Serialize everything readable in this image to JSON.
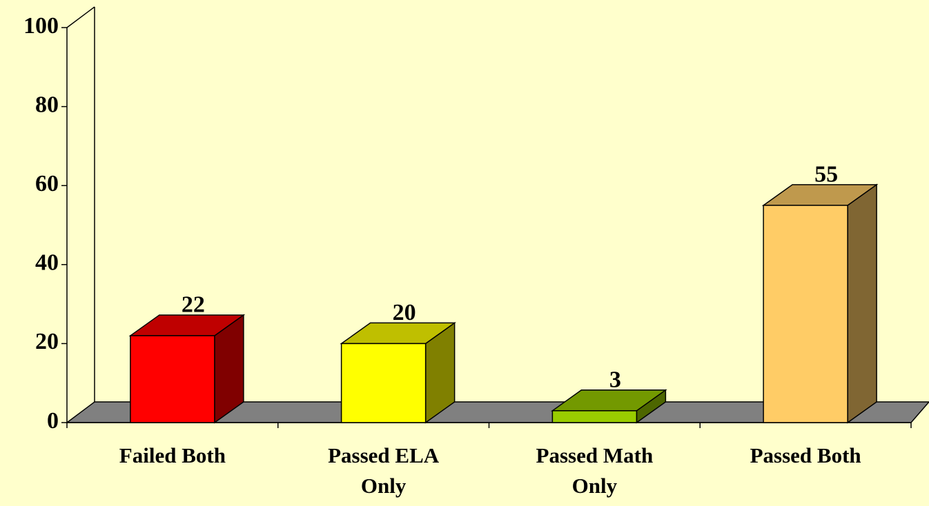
{
  "chart_data": {
    "type": "bar3d",
    "categories": [
      "Failed Both",
      "Passed ELA Only",
      "Passed Math Only",
      "Passed Both"
    ],
    "values": [
      22,
      20,
      3,
      55
    ],
    "colors": [
      "#ff0000",
      "#ffff00",
      "#99cc00",
      "#ffcc66"
    ],
    "ylim": [
      0,
      100
    ],
    "yticks": [
      0,
      20,
      40,
      60,
      80,
      100
    ]
  }
}
